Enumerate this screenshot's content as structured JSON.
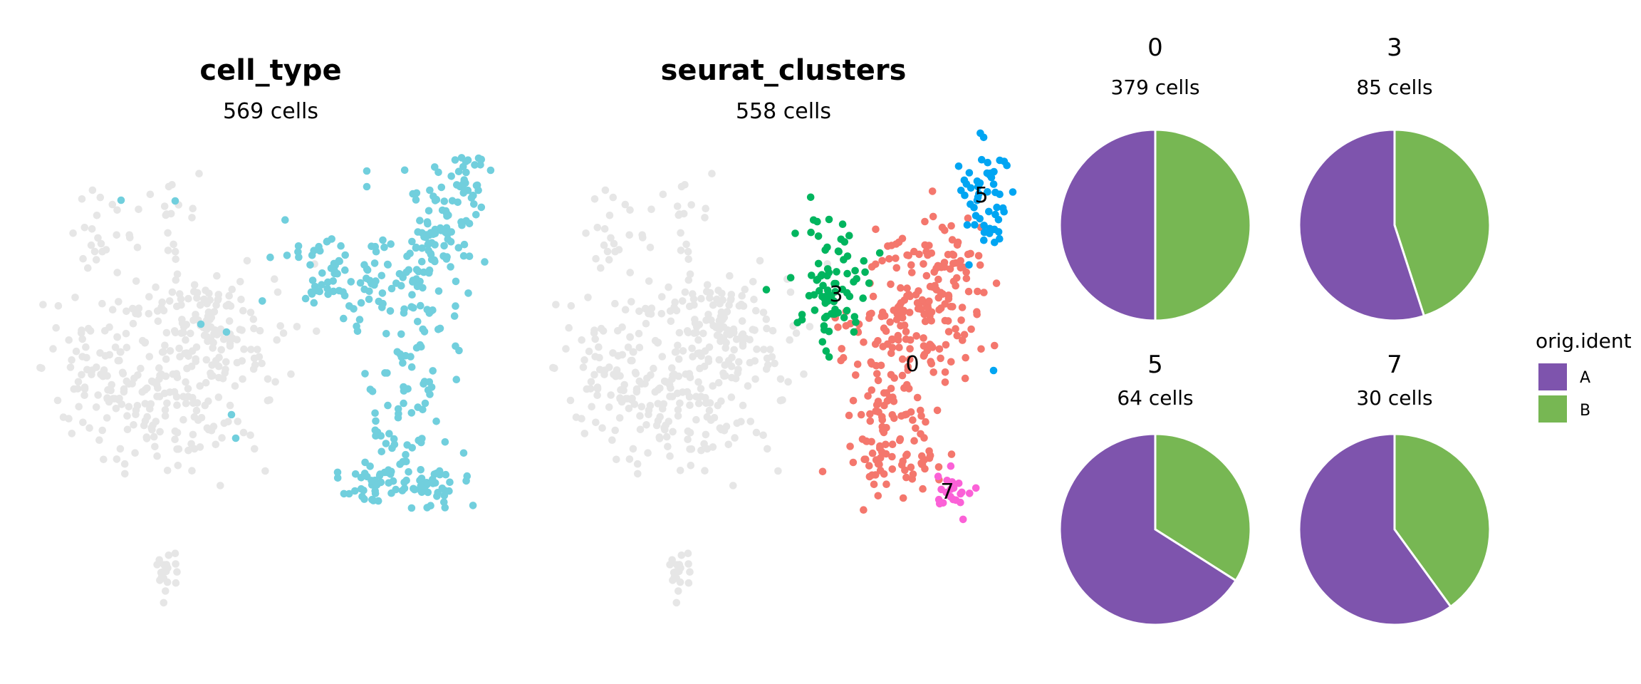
{
  "colors": {
    "background_cells": "#E6E6E6",
    "highlight_cell_type": "#71CFDD",
    "cluster_0": "#F4776D",
    "cluster_3": "#00B55E",
    "cluster_5": "#00A5F2",
    "cluster_7": "#FB61D7",
    "ident_A": "#7E54AD",
    "ident_B": "#77B753"
  },
  "chart_data": [
    {
      "type": "scatter",
      "title": "cell_type",
      "subtitle": "569 cells",
      "highlighted_cells": 569,
      "grid": false,
      "axes": "none"
    },
    {
      "type": "scatter",
      "title": "seurat_clusters",
      "subtitle": "558 cells",
      "highlighted_cells": 558,
      "cluster_labels": [
        "0",
        "3",
        "5",
        "7"
      ],
      "grid": false,
      "axes": "none"
    },
    {
      "type": "pie",
      "facets": [
        {
          "title": "0",
          "subtitle": "379 cells",
          "slices": [
            {
              "name": "A",
              "value": 0.5
            },
            {
              "name": "B",
              "value": 0.5
            }
          ]
        },
        {
          "title": "3",
          "subtitle": "85 cells",
          "slices": [
            {
              "name": "A",
              "value": 0.55
            },
            {
              "name": "B",
              "value": 0.45
            }
          ]
        },
        {
          "title": "5",
          "subtitle": "64 cells",
          "slices": [
            {
              "name": "A",
              "value": 0.66
            },
            {
              "name": "B",
              "value": 0.34
            }
          ]
        },
        {
          "title": "7",
          "subtitle": "30 cells",
          "slices": [
            {
              "name": "A",
              "value": 0.6
            },
            {
              "name": "B",
              "value": 0.4
            }
          ]
        }
      ],
      "legend": {
        "title": "orig.ident",
        "position": "right",
        "entries": [
          "A",
          "B"
        ]
      }
    }
  ]
}
